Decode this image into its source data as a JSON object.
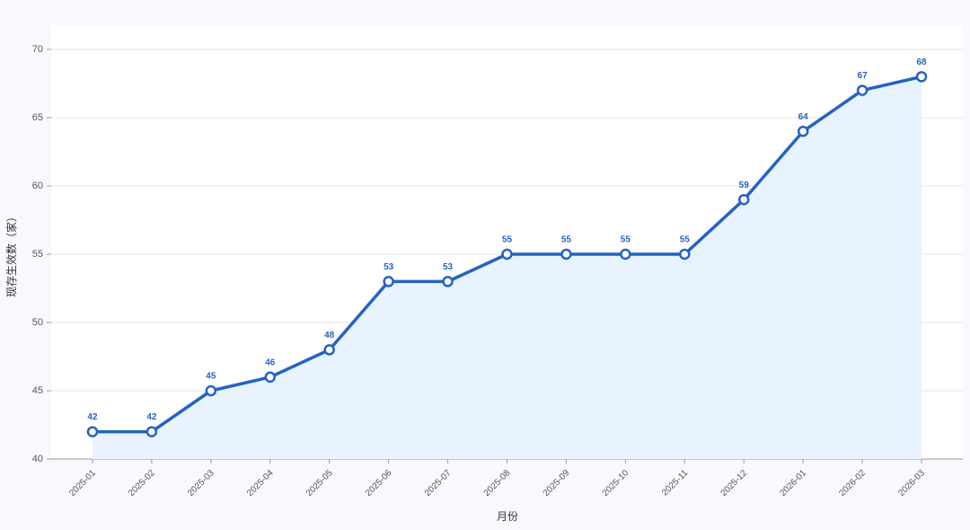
{
  "chart_data": {
    "type": "line",
    "y_label": "现存生效数（家）",
    "x_label": "月份",
    "categories": [
      "2025-01",
      "2025-02",
      "2025-03",
      "2025-04",
      "2025-05",
      "2025-06",
      "2025-07",
      "2025-08",
      "2025-09",
      "2025-10",
      "2025-11",
      "2025-12",
      "2026-01",
      "2026-02",
      "2026-03"
    ],
    "values": [
      42,
      42,
      45,
      46,
      48,
      53,
      53,
      55,
      55,
      55,
      55,
      59,
      64,
      67,
      68
    ],
    "color": "#2463c2",
    "fill_color": "#e8f3ff",
    "ylim": [
      40,
      70
    ],
    "yticks": [
      40,
      45,
      50,
      55,
      60,
      65,
      70
    ],
    "grid": true,
    "data_labels": true
  }
}
